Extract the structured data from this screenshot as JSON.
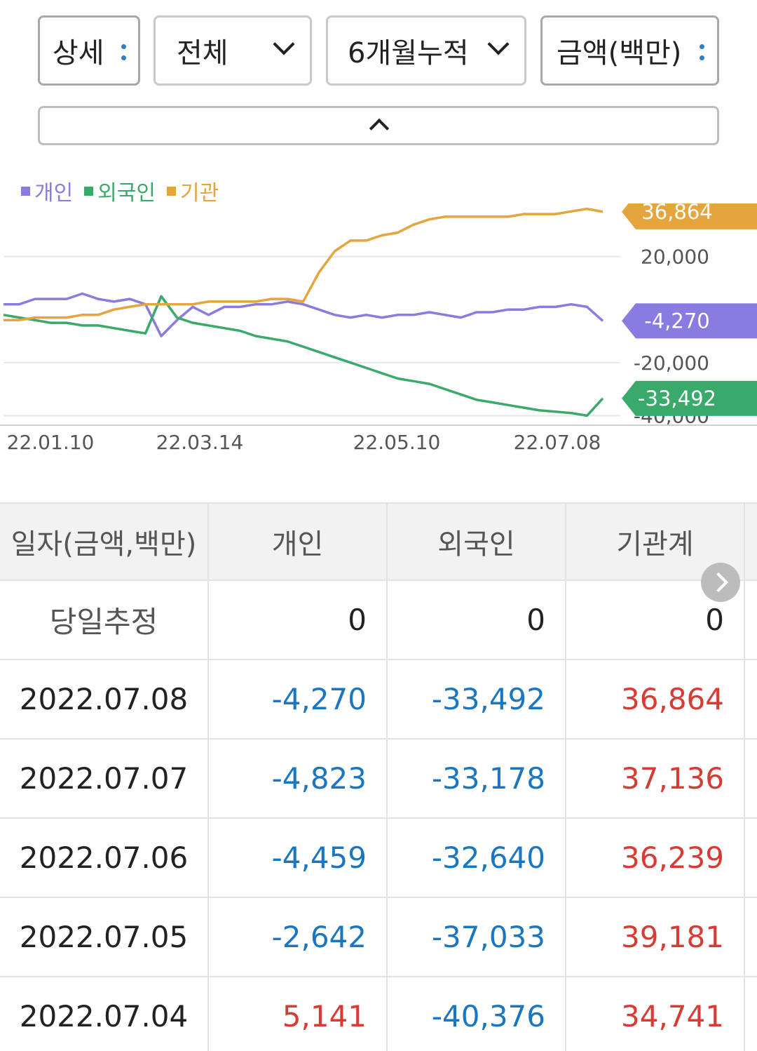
{
  "filters": {
    "detail": "상세",
    "scope": "전체",
    "period": "6개월누적",
    "unit": "금액(백만)"
  },
  "legend": [
    {
      "label": "개인",
      "color": "#8a7be0"
    },
    {
      "label": "외국인",
      "color": "#3aaa6a"
    },
    {
      "label": "기관",
      "color": "#e6a43c"
    }
  ],
  "chart_data": {
    "type": "line",
    "x_ticks": [
      "22.01.10",
      "22.03.14",
      "22.05.10",
      "22.07.08"
    ],
    "y_ticks": [
      20000,
      -20000,
      -40000
    ],
    "y_tick_labels": [
      "20,000",
      "-20,000",
      "-40,000"
    ],
    "ylim": [
      -42000,
      40000
    ],
    "series": [
      {
        "name": "개인",
        "color": "#8a7be0",
        "last_label": "-4,270",
        "values": [
          2000,
          2000,
          4000,
          4000,
          4000,
          6000,
          4000,
          3000,
          4000,
          2000,
          -10000,
          -4000,
          1000,
          -2000,
          1000,
          1000,
          2000,
          2000,
          3000,
          2000,
          0,
          -2000,
          -3000,
          -2000,
          -3000,
          -2000,
          -2000,
          -1000,
          -2000,
          -3000,
          -1000,
          -1000,
          0,
          0,
          1000,
          1000,
          2000,
          1000,
          -4270
        ]
      },
      {
        "name": "외국인",
        "color": "#3aaa6a",
        "last_label": "-33,492",
        "values": [
          -2000,
          -3000,
          -4000,
          -5000,
          -5000,
          -6000,
          -6000,
          -7000,
          -8000,
          -9000,
          5000,
          -3000,
          -5000,
          -6000,
          -7000,
          -8000,
          -10000,
          -11000,
          -12000,
          -14000,
          -16000,
          -18000,
          -20000,
          -22000,
          -24000,
          -26000,
          -27000,
          -28000,
          -30000,
          -32000,
          -34000,
          -35000,
          -36000,
          -37000,
          -38000,
          -38500,
          -39000,
          -40000,
          -33492
        ]
      },
      {
        "name": "기관",
        "color": "#e6a43c",
        "last_label": "36,864",
        "values": [
          -4000,
          -4000,
          -3000,
          -3000,
          -3000,
          -2000,
          -2000,
          0,
          1000,
          2000,
          2000,
          2000,
          2000,
          3000,
          3000,
          3000,
          3000,
          4000,
          4000,
          3000,
          14000,
          22000,
          26000,
          26000,
          28000,
          29000,
          32000,
          34000,
          35000,
          35000,
          35000,
          35000,
          35000,
          36000,
          36000,
          36000,
          37000,
          38000,
          36864
        ]
      }
    ]
  },
  "table": {
    "headers": [
      "일자(금액,백만)",
      "개인",
      "외국인",
      "기관계"
    ],
    "rows": [
      {
        "date": "당일추정",
        "individual": "0",
        "foreign": "0",
        "institution": "0"
      },
      {
        "date": "2022.07.08",
        "individual": "-4,270",
        "foreign": "-33,492",
        "institution": "36,864"
      },
      {
        "date": "2022.07.07",
        "individual": "-4,823",
        "foreign": "-33,178",
        "institution": "37,136"
      },
      {
        "date": "2022.07.06",
        "individual": "-4,459",
        "foreign": "-32,640",
        "institution": "36,239"
      },
      {
        "date": "2022.07.05",
        "individual": "-2,642",
        "foreign": "-37,033",
        "institution": "39,181"
      },
      {
        "date": "2022.07.04",
        "individual": "5,141",
        "foreign": "-40,376",
        "institution": "34,741"
      }
    ]
  }
}
